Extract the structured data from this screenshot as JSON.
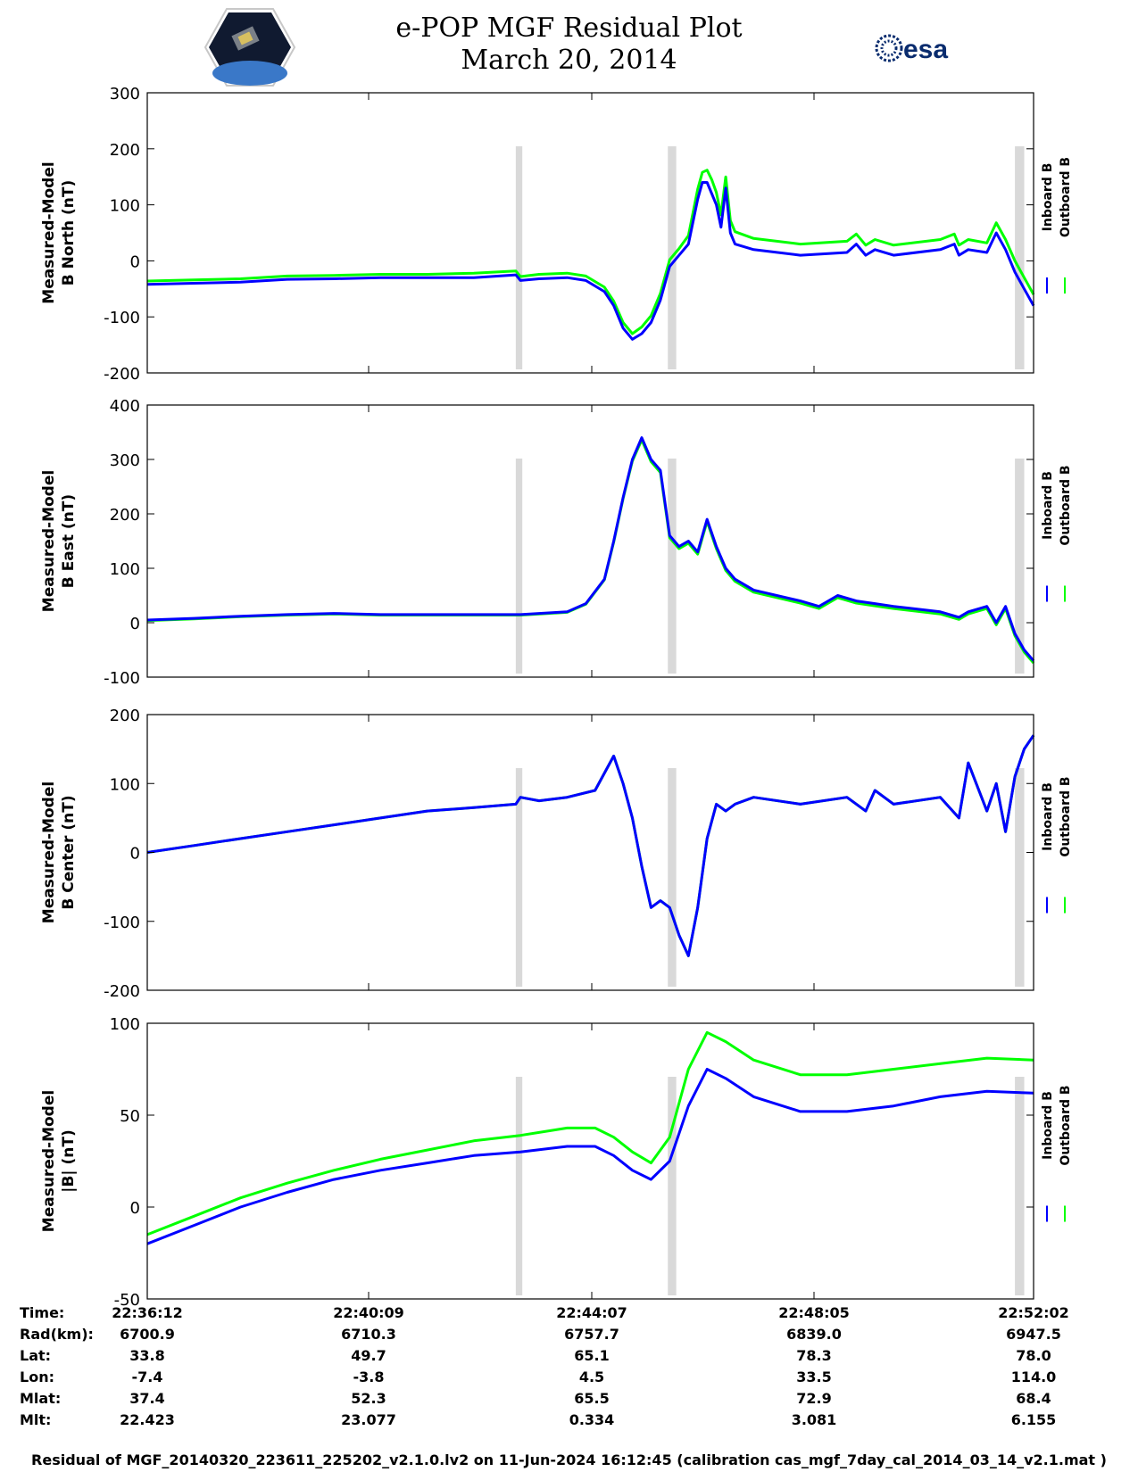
{
  "header": {
    "title_line1": "e-POP MGF Residual Plot",
    "title_line2": "March 20, 2014",
    "logo_left": "cassiope-mission-badge",
    "logo_right_text": "esa"
  },
  "chart_data": [
    {
      "type": "line",
      "ylabel_line1": "Measured-Model",
      "ylabel_line2": "B North (nT)",
      "ylim": [
        -200,
        300
      ],
      "yticks": [
        "300",
        "200",
        "100",
        "0",
        "-100",
        "-200"
      ],
      "yticks_values": [
        300,
        200,
        100,
        0,
        -100,
        -200
      ],
      "xlim": [
        0,
        950
      ],
      "shaded_intervals": [
        [
          395,
          402
        ],
        [
          558,
          567
        ],
        [
          930,
          940
        ]
      ],
      "series": [
        {
          "name": "Inboard B",
          "color": "#0000ff",
          "x": [
            0,
            50,
            100,
            150,
            200,
            250,
            300,
            350,
            395,
            400,
            420,
            450,
            470,
            490,
            500,
            510,
            520,
            530,
            540,
            550,
            560,
            570,
            580,
            590,
            595,
            600,
            605,
            610,
            615,
            620,
            625,
            630,
            650,
            700,
            750,
            760,
            770,
            780,
            800,
            850,
            865,
            870,
            880,
            900,
            910,
            920,
            930,
            940,
            950
          ],
          "y": [
            -42,
            -40,
            -38,
            -33,
            -32,
            -30,
            -30,
            -30,
            -25,
            -35,
            -32,
            -30,
            -35,
            -55,
            -80,
            -120,
            -140,
            -130,
            -110,
            -70,
            -10,
            10,
            30,
            110,
            140,
            140,
            120,
            100,
            60,
            130,
            50,
            30,
            20,
            10,
            15,
            30,
            10,
            20,
            10,
            20,
            30,
            10,
            20,
            15,
            50,
            20,
            -20,
            -50,
            -80
          ]
        },
        {
          "name": "Outboard B",
          "color": "#00ff00",
          "x": [
            0,
            50,
            100,
            150,
            200,
            250,
            300,
            350,
            395,
            400,
            420,
            450,
            470,
            490,
            500,
            510,
            520,
            530,
            540,
            550,
            560,
            570,
            580,
            590,
            595,
            600,
            605,
            610,
            615,
            620,
            625,
            630,
            650,
            700,
            750,
            760,
            770,
            780,
            800,
            850,
            865,
            870,
            880,
            900,
            910,
            920,
            930,
            940,
            950
          ],
          "y": [
            -36,
            -34,
            -32,
            -27,
            -26,
            -24,
            -24,
            -22,
            -18,
            -28,
            -24,
            -22,
            -27,
            -47,
            -72,
            -110,
            -130,
            -118,
            -98,
            -58,
            2,
            22,
            45,
            128,
            158,
            162,
            145,
            122,
            82,
            150,
            72,
            52,
            40,
            30,
            35,
            48,
            28,
            38,
            28,
            38,
            48,
            28,
            38,
            32,
            68,
            38,
            0,
            -30,
            -60
          ]
        }
      ]
    },
    {
      "type": "line",
      "ylabel_line1": "Measured-Model",
      "ylabel_line2": "B East (nT)",
      "ylim": [
        -100,
        400
      ],
      "yticks": [
        "400",
        "300",
        "200",
        "100",
        "0",
        "-100"
      ],
      "yticks_values": [
        400,
        300,
        200,
        100,
        0,
        -100
      ],
      "xlim": [
        0,
        950
      ],
      "shaded_intervals": [
        [
          395,
          402
        ],
        [
          558,
          567
        ],
        [
          930,
          940
        ]
      ],
      "series": [
        {
          "name": "Inboard B",
          "color": "#0000ff",
          "x": [
            0,
            50,
            100,
            150,
            200,
            250,
            300,
            350,
            400,
            450,
            470,
            490,
            500,
            510,
            520,
            530,
            540,
            550,
            560,
            570,
            580,
            590,
            600,
            610,
            620,
            630,
            650,
            700,
            720,
            740,
            760,
            780,
            800,
            850,
            870,
            880,
            900,
            910,
            920,
            930,
            940,
            950
          ],
          "y": [
            5,
            8,
            12,
            15,
            17,
            15,
            15,
            15,
            15,
            20,
            35,
            80,
            150,
            230,
            300,
            340,
            300,
            280,
            160,
            140,
            150,
            130,
            190,
            140,
            100,
            80,
            60,
            40,
            30,
            50,
            40,
            35,
            30,
            20,
            10,
            20,
            30,
            0,
            30,
            -20,
            -50,
            -70
          ]
        },
        {
          "name": "Outboard B",
          "color": "#00ff00",
          "x": [
            0,
            50,
            100,
            150,
            200,
            250,
            300,
            350,
            400,
            450,
            470,
            490,
            500,
            510,
            520,
            530,
            540,
            550,
            560,
            570,
            580,
            590,
            600,
            610,
            620,
            630,
            650,
            700,
            720,
            740,
            760,
            780,
            800,
            850,
            870,
            880,
            900,
            910,
            920,
            930,
            940,
            950
          ],
          "y": [
            4,
            7,
            11,
            14,
            16,
            14,
            14,
            14,
            14,
            19,
            34,
            79,
            148,
            228,
            297,
            336,
            296,
            276,
            156,
            136,
            146,
            126,
            186,
            136,
            96,
            76,
            56,
            36,
            26,
            46,
            36,
            31,
            26,
            16,
            6,
            16,
            26,
            -4,
            26,
            -24,
            -54,
            -74
          ]
        }
      ]
    },
    {
      "type": "line",
      "ylabel_line1": "Measured-Model",
      "ylabel_line2": "B Center (nT)",
      "ylim": [
        -200,
        200
      ],
      "yticks": [
        "200",
        "100",
        "0",
        "-100",
        "-200"
      ],
      "yticks_values": [
        200,
        100,
        0,
        -100,
        -200
      ],
      "xlim": [
        0,
        950
      ],
      "shaded_intervals": [
        [
          395,
          402
        ],
        [
          558,
          567
        ],
        [
          930,
          940
        ]
      ],
      "series": [
        {
          "name": "Inboard B",
          "color": "#0000ff",
          "x": [
            0,
            50,
            100,
            150,
            200,
            250,
            300,
            350,
            395,
            400,
            420,
            450,
            480,
            500,
            510,
            520,
            530,
            540,
            550,
            560,
            570,
            580,
            590,
            600,
            610,
            620,
            630,
            650,
            700,
            750,
            770,
            780,
            800,
            850,
            870,
            880,
            900,
            910,
            920,
            930,
            940,
            950
          ],
          "y": [
            0,
            10,
            20,
            30,
            40,
            50,
            60,
            65,
            70,
            80,
            75,
            80,
            90,
            140,
            100,
            50,
            -20,
            -80,
            -70,
            -80,
            -120,
            -150,
            -80,
            20,
            70,
            60,
            70,
            80,
            70,
            80,
            60,
            90,
            70,
            80,
            50,
            130,
            60,
            100,
            30,
            110,
            150,
            170
          ]
        },
        {
          "name": "Outboard B",
          "color": "#00ff00",
          "x": [
            0,
            50,
            100,
            150,
            200,
            250,
            300,
            350,
            395,
            400,
            420,
            450,
            480,
            500,
            510,
            520,
            530,
            540,
            550,
            560,
            570,
            580,
            590,
            600,
            610,
            620,
            630,
            650,
            700,
            750,
            770,
            780,
            800,
            850,
            870,
            880,
            900,
            910,
            920,
            930,
            940,
            950
          ],
          "y": [
            0,
            10,
            20,
            30,
            40,
            50,
            60,
            65,
            70,
            80,
            75,
            80,
            90,
            140,
            100,
            50,
            -20,
            -80,
            -70,
            -80,
            -120,
            -150,
            -80,
            20,
            70,
            60,
            70,
            80,
            70,
            80,
            60,
            90,
            70,
            80,
            50,
            130,
            60,
            100,
            30,
            110,
            150,
            170
          ]
        }
      ]
    },
    {
      "type": "line",
      "ylabel_line1": "Measured-Model",
      "ylabel_line2": "|B| (nT)",
      "ylim": [
        -50,
        100
      ],
      "yticks": [
        "100",
        "50",
        "0",
        "-50"
      ],
      "yticks_values": [
        100,
        50,
        0,
        -50
      ],
      "xlim": [
        0,
        950
      ],
      "shaded_intervals": [
        [
          395,
          402
        ],
        [
          558,
          567
        ],
        [
          930,
          940
        ]
      ],
      "series": [
        {
          "name": "Inboard B",
          "color": "#0000ff",
          "x": [
            0,
            50,
            100,
            150,
            200,
            250,
            300,
            350,
            400,
            450,
            480,
            500,
            520,
            540,
            560,
            580,
            600,
            620,
            650,
            700,
            750,
            800,
            850,
            900,
            950
          ],
          "y": [
            -20,
            -10,
            0,
            8,
            15,
            20,
            24,
            28,
            30,
            33,
            33,
            28,
            20,
            15,
            25,
            55,
            75,
            70,
            60,
            52,
            52,
            55,
            60,
            63,
            62
          ]
        },
        {
          "name": "Outboard B",
          "color": "#00ff00",
          "x": [
            0,
            50,
            100,
            150,
            200,
            250,
            300,
            350,
            400,
            450,
            480,
            500,
            520,
            540,
            560,
            580,
            600,
            620,
            650,
            700,
            750,
            800,
            850,
            900,
            950
          ],
          "y": [
            -15,
            -5,
            5,
            13,
            20,
            26,
            31,
            36,
            39,
            43,
            43,
            38,
            30,
            24,
            38,
            75,
            95,
            90,
            80,
            72,
            72,
            75,
            78,
            81,
            80
          ]
        }
      ]
    }
  ],
  "ephemeris": {
    "labels": [
      "Time:",
      "Rad(km):",
      "Lat:",
      "Lon:",
      "Mlat:",
      "Mlt:"
    ],
    "columns": [
      [
        "22:36:12",
        "6700.9",
        "33.8",
        "-7.4",
        "37.4",
        "22.423"
      ],
      [
        "22:40:09",
        "6710.3",
        "49.7",
        "-3.8",
        "52.3",
        "23.077"
      ],
      [
        "22:44:07",
        "6757.7",
        "65.1",
        "4.5",
        "65.5",
        "0.334"
      ],
      [
        "22:48:05",
        "6839.0",
        "78.3",
        "33.5",
        "72.9",
        "3.081"
      ],
      [
        "22:52:02",
        "6947.5",
        "78.0",
        "114.0",
        "68.4",
        "6.155"
      ]
    ]
  },
  "footnote": "Residual of MGF_20140320_223611_225202_v2.1.0.lv2 on 11-Jun-2024 16:12:45 (calibration cas_mgf_7day_cal_2014_03_14_v2.1.mat )",
  "colors": {
    "inboard": "#0000ff",
    "outboard": "#00ff00",
    "shade": "#d9d9d9"
  }
}
